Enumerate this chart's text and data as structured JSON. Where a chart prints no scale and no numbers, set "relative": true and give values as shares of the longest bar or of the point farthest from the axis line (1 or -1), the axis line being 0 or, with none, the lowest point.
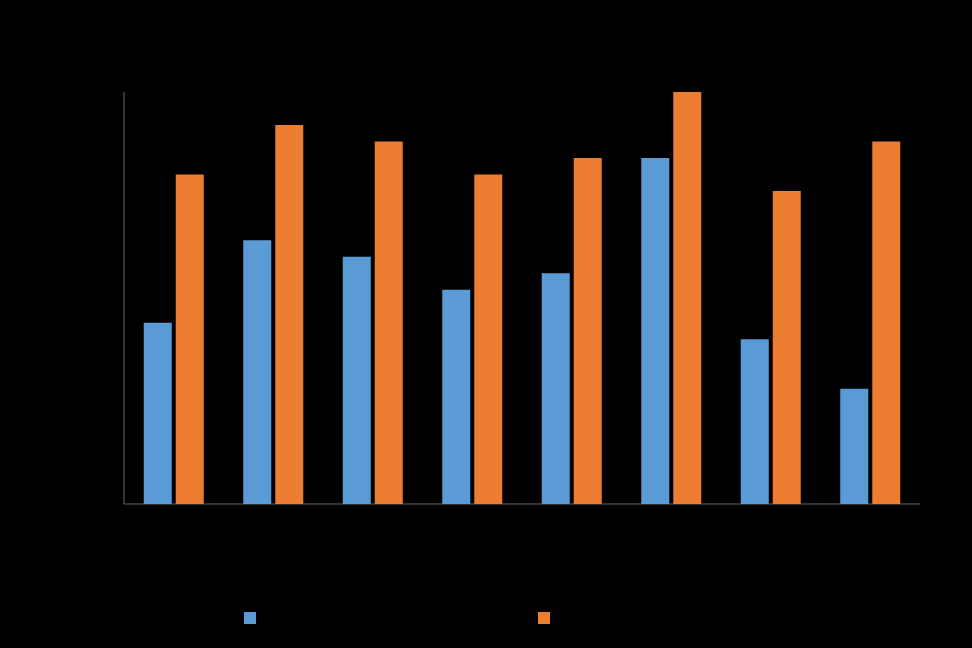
{
  "chart_data": {
    "type": "bar",
    "relative": true,
    "categories": [
      null,
      null,
      null,
      null,
      null,
      null,
      null,
      null
    ],
    "series": [
      {
        "color": "#5b9bd5",
        "values": [
          0.44,
          0.64,
          0.6,
          0.52,
          0.56,
          0.84,
          0.4,
          0.28
        ]
      },
      {
        "color": "#ed7d31",
        "values": [
          0.8,
          0.92,
          0.88,
          0.8,
          0.84,
          1,
          0.76,
          0.88
        ]
      }
    ]
  }
}
